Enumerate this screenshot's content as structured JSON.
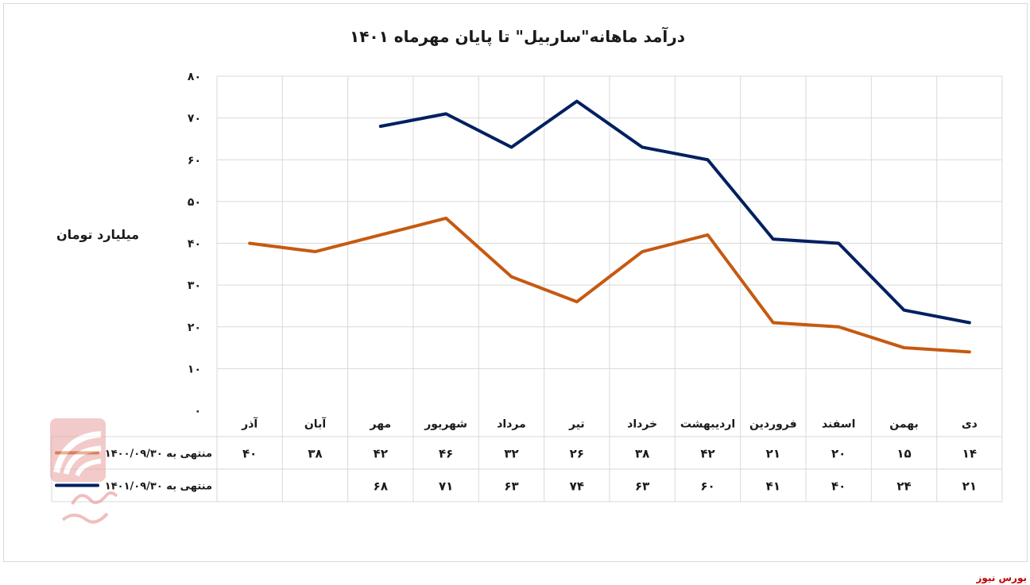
{
  "source_label": "بورس نیوز",
  "chart_data": {
    "type": "line",
    "title": "درآمد ماهانه\"ساربیل\" تا پایان مهرماه ۱۴۰۱",
    "ylabel": "میلیارد تومان",
    "ylim": [
      0,
      80
    ],
    "yticks": [
      0,
      10,
      20,
      30,
      40,
      50,
      60,
      70,
      80
    ],
    "ytick_labels": [
      "۰",
      "۱۰",
      "۲۰",
      "۳۰",
      "۴۰",
      "۵۰",
      "۶۰",
      "۷۰",
      "۸۰"
    ],
    "categories": [
      "دی",
      "بهمن",
      "اسفند",
      "فروردین",
      "اردیبهشت",
      "خرداد",
      "تیر",
      "مرداد",
      "شهریور",
      "مهر",
      "آبان",
      "آذر"
    ],
    "grid": true,
    "legend": "data-table-left",
    "series": [
      {
        "name": "منتهی به ۱۴۰۰/۰۹/۳۰",
        "color": "#c55a11",
        "values": [
          14,
          15,
          20,
          21,
          42,
          38,
          26,
          32,
          46,
          42,
          38,
          40
        ],
        "value_labels": [
          "۱۴",
          "۱۵",
          "۲۰",
          "۲۱",
          "۴۲",
          "۳۸",
          "۲۶",
          "۳۲",
          "۴۶",
          "۴۲",
          "۳۸",
          "۴۰"
        ]
      },
      {
        "name": "منتهی به ۱۴۰۱/۰۹/۳۰",
        "color": "#002060",
        "values": [
          21,
          24,
          40,
          41,
          60,
          63,
          74,
          63,
          71,
          68,
          null,
          null
        ],
        "value_labels": [
          "۲۱",
          "۲۴",
          "۴۰",
          "۴۱",
          "۶۰",
          "۶۳",
          "۷۴",
          "۶۳",
          "۷۱",
          "۶۸",
          "",
          ""
        ]
      }
    ]
  }
}
